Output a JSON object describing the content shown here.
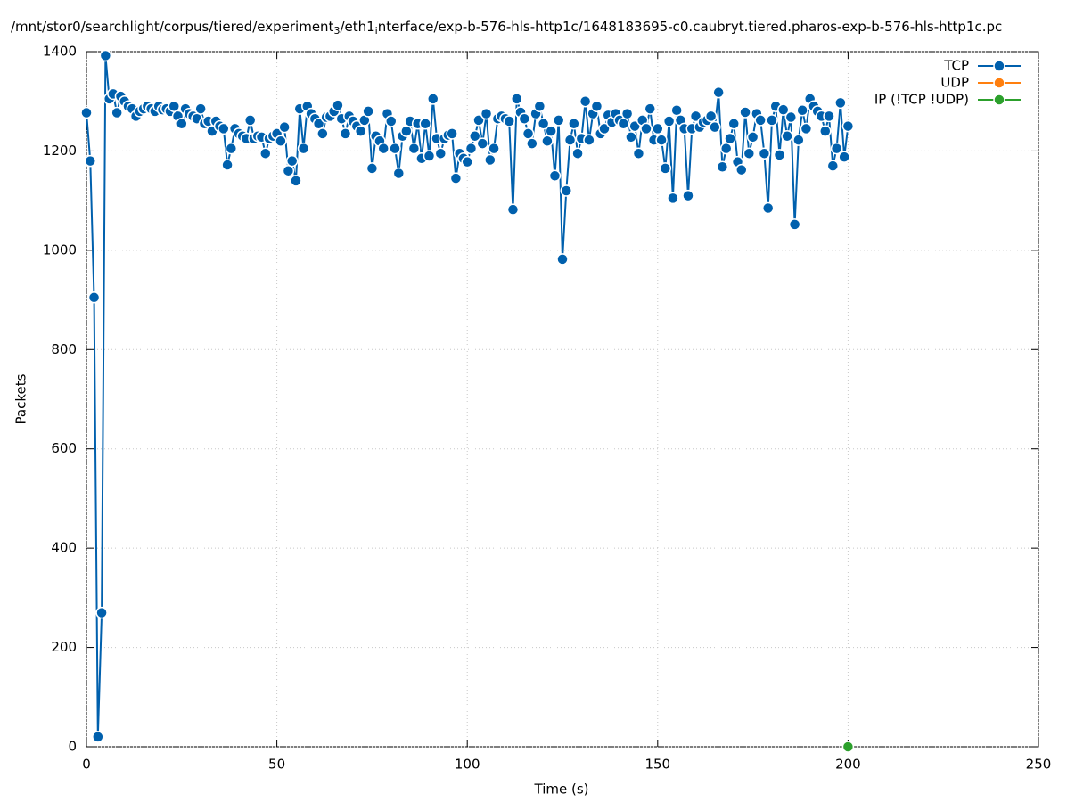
{
  "chart_data": {
    "type": "line",
    "title": [
      "/mnt/stor0/searchlight/corpus/tiered/experiment",
      "3",
      "/eth1",
      "i",
      "nterface/exp-b-576-hls-http1c/1648183695-c0.caubryt.tiered.pharos-exp-b-576-hls-http1c.pc"
    ],
    "xlabel": "Time (s)",
    "ylabel": "Packets",
    "xlim": [
      0,
      250
    ],
    "xticks": [
      0,
      50,
      100,
      150,
      200,
      250
    ],
    "ylim": [
      0,
      1400
    ],
    "yticks": [
      0,
      200,
      400,
      600,
      800,
      1000,
      1200,
      1400
    ],
    "grid": true,
    "legend": "top-right",
    "series": [
      {
        "name": "TCP",
        "color": "#0060ad",
        "x": [
          0,
          1,
          2,
          3,
          4,
          5,
          6,
          7,
          8,
          9,
          10,
          11,
          12,
          13,
          14,
          15,
          16,
          17,
          18,
          19,
          20,
          21,
          22,
          23,
          24,
          25,
          26,
          27,
          28,
          29,
          30,
          31,
          32,
          33,
          34,
          35,
          36,
          37,
          38,
          39,
          40,
          41,
          42,
          43,
          44,
          45,
          46,
          47,
          48,
          49,
          50,
          51,
          52,
          53,
          54,
          55,
          56,
          57,
          58,
          59,
          60,
          61,
          62,
          63,
          64,
          65,
          66,
          67,
          68,
          69,
          70,
          71,
          72,
          73,
          74,
          75,
          76,
          77,
          78,
          79,
          80,
          81,
          82,
          83,
          84,
          85,
          86,
          87,
          88,
          89,
          90,
          91,
          92,
          93,
          94,
          95,
          96,
          97,
          98,
          99,
          100,
          101,
          102,
          103,
          104,
          105,
          106,
          107,
          108,
          109,
          110,
          111,
          112,
          113,
          114,
          115,
          116,
          117,
          118,
          119,
          120,
          121,
          122,
          123,
          124,
          125,
          126,
          127,
          128,
          129,
          130,
          131,
          132,
          133,
          134,
          135,
          136,
          137,
          138,
          139,
          140,
          141,
          142,
          143,
          144,
          145,
          146,
          147,
          148,
          149,
          150,
          151,
          152,
          153,
          154,
          155,
          156,
          157,
          158,
          159,
          160,
          161,
          162,
          163,
          164,
          165,
          166,
          167,
          168,
          169,
          170,
          171,
          172,
          173,
          174,
          175,
          176,
          177,
          178,
          179,
          180,
          181,
          182,
          183,
          184,
          185,
          186,
          187,
          188,
          189,
          190,
          191,
          192,
          193,
          194,
          195,
          196,
          197,
          198,
          199,
          200
        ],
        "values": [
          1277,
          1180,
          905,
          20,
          270,
          1392,
          1305,
          1315,
          1277,
          1310,
          1300,
          1290,
          1285,
          1270,
          1280,
          1285,
          1290,
          1285,
          1280,
          1290,
          1283,
          1285,
          1280,
          1290,
          1270,
          1255,
          1285,
          1275,
          1270,
          1265,
          1285,
          1255,
          1260,
          1240,
          1260,
          1250,
          1245,
          1172,
          1205,
          1245,
          1235,
          1230,
          1225,
          1262,
          1225,
          1230,
          1228,
          1195,
          1225,
          1230,
          1235,
          1220,
          1248,
          1160,
          1180,
          1140,
          1285,
          1205,
          1290,
          1275,
          1265,
          1255,
          1235,
          1268,
          1270,
          1280,
          1292,
          1265,
          1235,
          1270,
          1260,
          1250,
          1240,
          1262,
          1280,
          1165,
          1230,
          1220,
          1205,
          1275,
          1260,
          1205,
          1155,
          1230,
          1240,
          1260,
          1205,
          1255,
          1185,
          1255,
          1190,
          1305,
          1225,
          1195,
          1225,
          1232,
          1235,
          1145,
          1195,
          1185,
          1178,
          1205,
          1230,
          1262,
          1215,
          1275,
          1182,
          1205,
          1265,
          1270,
          1265,
          1260,
          1082,
          1305,
          1278,
          1265,
          1235,
          1215,
          1275,
          1290,
          1255,
          1220,
          1240,
          1150,
          1262,
          982,
          1120,
          1222,
          1255,
          1195,
          1225,
          1300,
          1222,
          1275,
          1290,
          1235,
          1245,
          1272,
          1258,
          1275,
          1262,
          1255,
          1275,
          1228,
          1250,
          1195,
          1262,
          1245,
          1285,
          1222,
          1245,
          1222,
          1165,
          1260,
          1105,
          1282,
          1262,
          1245,
          1110,
          1245,
          1270,
          1248,
          1258,
          1262,
          1270,
          1248,
          1318,
          1168,
          1205,
          1225,
          1255,
          1178,
          1162,
          1278,
          1195,
          1228,
          1275,
          1262,
          1195,
          1085,
          1262,
          1290,
          1192,
          1283,
          1230,
          1268,
          1052,
          1222,
          1282,
          1245,
          1305,
          1290,
          1280,
          1270,
          1240,
          1270,
          1170,
          1205,
          1297,
          1188,
          1250
        ]
      },
      {
        "name": "UDP",
        "color": "#ff7f0e",
        "x": [],
        "values": []
      },
      {
        "name": "IP (!TCP  !UDP)",
        "color": "#2ca02c",
        "x": [
          200
        ],
        "values": [
          0
        ]
      }
    ]
  }
}
